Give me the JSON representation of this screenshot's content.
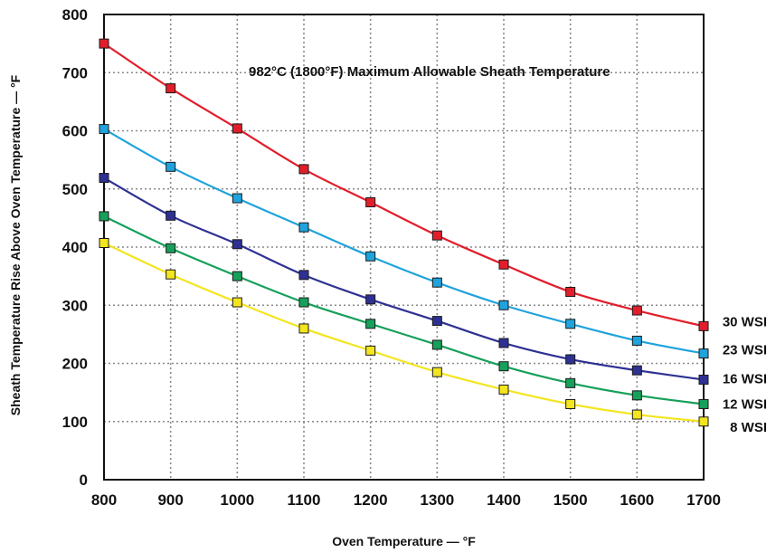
{
  "chart_data": {
    "type": "line",
    "xlabel": "Oven Temperature — °F",
    "ylabel": "Sheath Temperature Rise Above Oven Temperature — °F",
    "annotation": "982°C (1800°F) Maximum Allowable Sheath Temperature",
    "x": [
      800,
      900,
      1000,
      1100,
      1200,
      1300,
      1400,
      1500,
      1600,
      1700
    ],
    "xlim": [
      800,
      1700
    ],
    "ylim": [
      0,
      800
    ],
    "xticks": [
      "800",
      "900",
      "1000",
      "1100",
      "1200",
      "1300",
      "1400",
      "1500",
      "1600",
      "1700"
    ],
    "yticks": [
      "0",
      "100",
      "200",
      "300",
      "400",
      "500",
      "600",
      "700",
      "800"
    ],
    "grid": true,
    "legend": "labels at right end of each series",
    "series": [
      {
        "name": "30 WSI",
        "color": "#e21e2b",
        "values": [
          750,
          673,
          604,
          534,
          477,
          420,
          370,
          323,
          291,
          264
        ]
      },
      {
        "name": "23 WSI",
        "color": "#1fa3dc",
        "values": [
          603,
          538,
          484,
          434,
          384,
          339,
          300,
          268,
          239,
          217
        ]
      },
      {
        "name": "16 WSI",
        "color": "#2e3192",
        "values": [
          519,
          454,
          405,
          352,
          310,
          273,
          235,
          207,
          188,
          172
        ]
      },
      {
        "name": "12 WSI",
        "color": "#16a05a",
        "values": [
          453,
          398,
          350,
          305,
          268,
          232,
          195,
          166,
          145,
          130
        ]
      },
      {
        "name": "8 WSI",
        "color": "#f3e51e",
        "values": [
          407,
          353,
          305,
          260,
          222,
          185,
          155,
          130,
          112,
          100
        ]
      }
    ]
  }
}
